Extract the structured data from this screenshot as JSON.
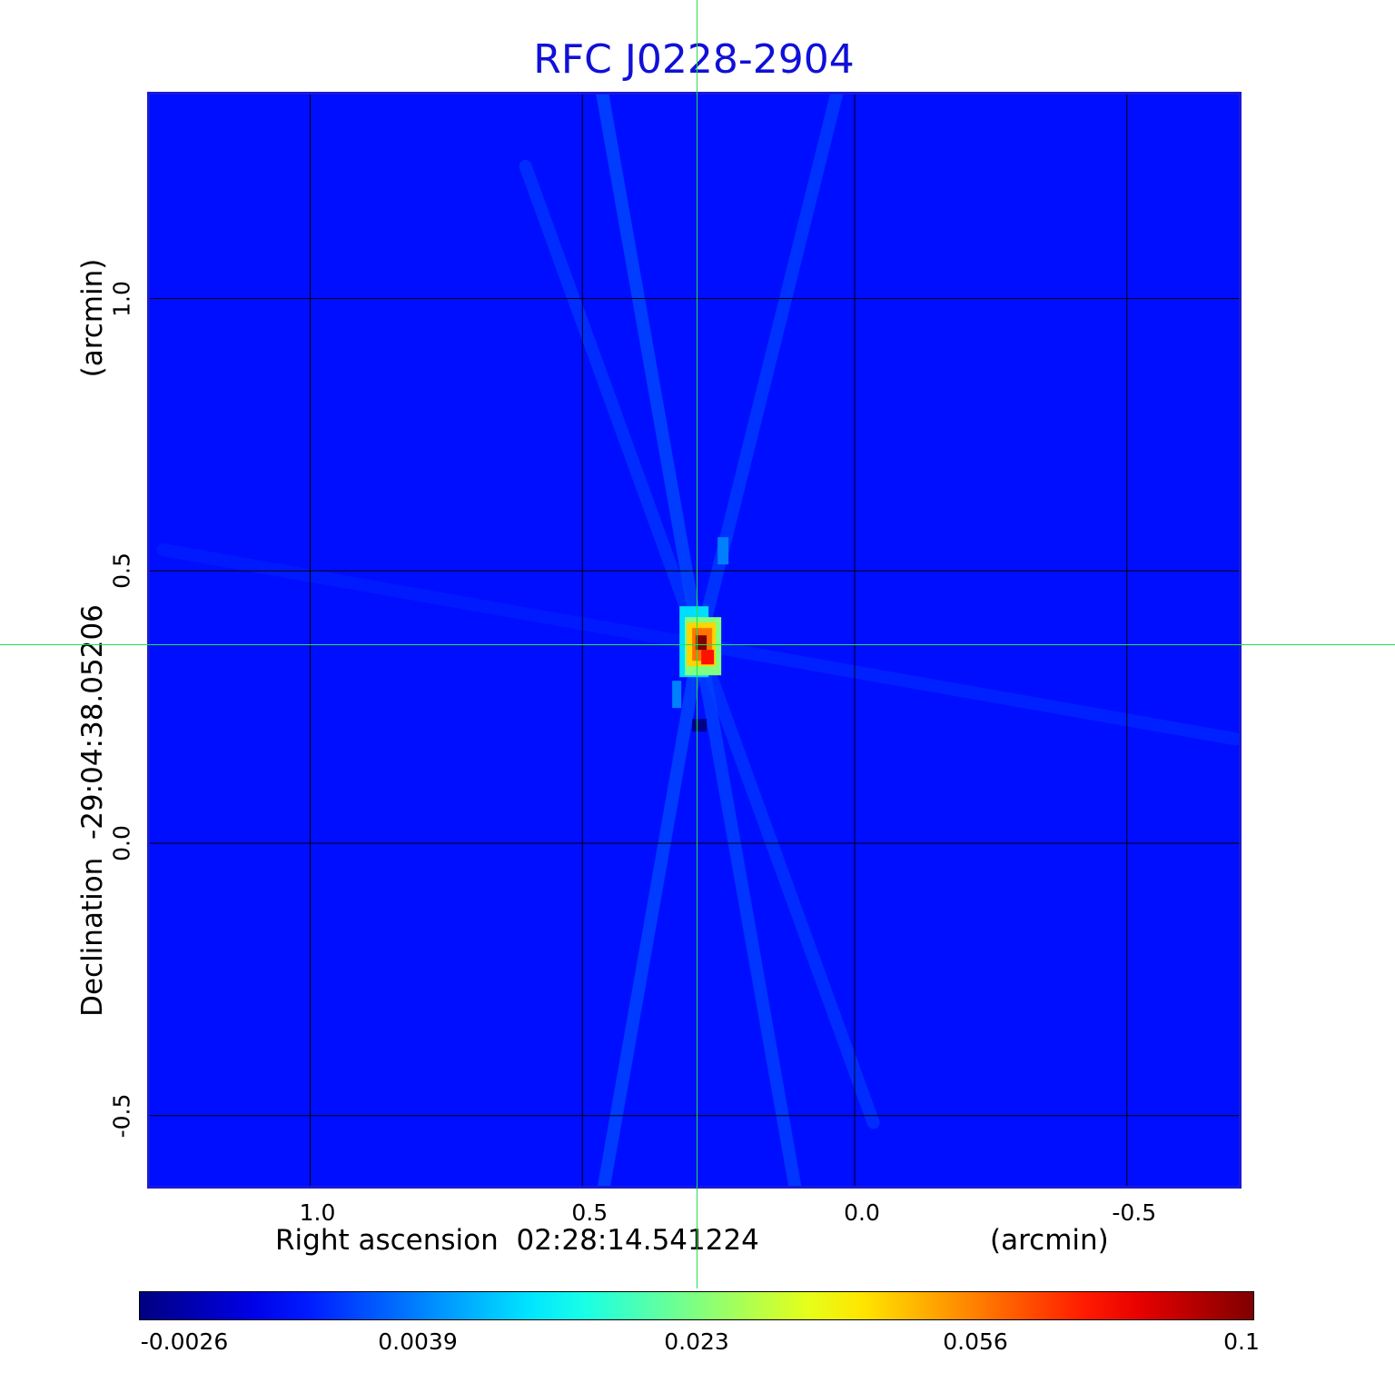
{
  "chart_data": {
    "type": "heatmap",
    "title": "RFC J0228-2904",
    "xlabel": "Right ascension  02:28:14.541224",
    "x_unit": "(arcmin)",
    "ylabel": "Declination  -29:04:38.05206",
    "y_unit": "(arcmin)",
    "x_ticks": [
      "1.0",
      "0.5",
      "0.0",
      "-0.5"
    ],
    "x_tick_values": [
      1.0,
      0.5,
      0.0,
      -0.5
    ],
    "y_ticks": [
      "1.0",
      "0.5",
      "0.0",
      "-0.5"
    ],
    "y_tick_values": [
      1.0,
      0.5,
      0.0,
      -0.5
    ],
    "xlim": [
      1.3,
      -0.71
    ],
    "ylim": [
      -0.63,
      1.375
    ],
    "grid": true,
    "crosshair": {
      "x": 0.29,
      "y": 0.365
    },
    "peak": {
      "x": 0.285,
      "y": 0.365,
      "value": 0.1
    },
    "colorbar": {
      "colormap": "jet",
      "labels": [
        "-0.0026",
        "0.0039",
        "0.023",
        "0.056",
        "0.1"
      ],
      "min": -0.0026,
      "max": 0.1
    },
    "background_value": 0.001
  },
  "colors": {
    "title": "#1010d8",
    "frame": "#1a1ad6",
    "crosshair": "#22e04a",
    "grid": "#000000"
  }
}
